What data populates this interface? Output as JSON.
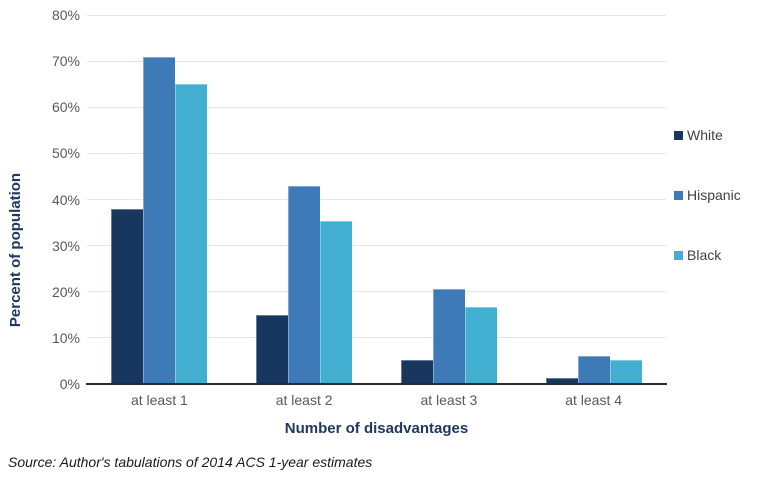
{
  "chart_data": {
    "type": "bar",
    "title": "",
    "categories": [
      "at least 1",
      "at least 2",
      "at least 3",
      "at least 4"
    ],
    "series": [
      {
        "name": "White",
        "color": "#17375e",
        "values": [
          38,
          15,
          5.3,
          1.2
        ]
      },
      {
        "name": "Hispanic",
        "color": "#3f7ab8",
        "values": [
          71,
          43,
          20.7,
          6
        ]
      },
      {
        "name": "Black",
        "color": "#42afd0",
        "values": [
          65,
          35.4,
          16.8,
          5.2
        ]
      }
    ],
    "xlabel": "Number of disadvantages",
    "ylabel": "Percent of population",
    "ylim": [
      0,
      80
    ],
    "ytick_step": 10,
    "ytick_labels": [
      "0%",
      "10%",
      "20%",
      "30%",
      "40%",
      "50%",
      "60%",
      "70%",
      "80%"
    ],
    "grid": "horizontal",
    "legend_position": "right",
    "styles": {
      "grid_color": "#e6e6e6",
      "axis_color": "#2b2b2b",
      "tick_color": "#595959",
      "axis_title_color": "#1f3864",
      "legend_text_color": "#404040"
    }
  },
  "source_note": "Source: Author's tabulations of 2014 ACS 1-year estimates"
}
